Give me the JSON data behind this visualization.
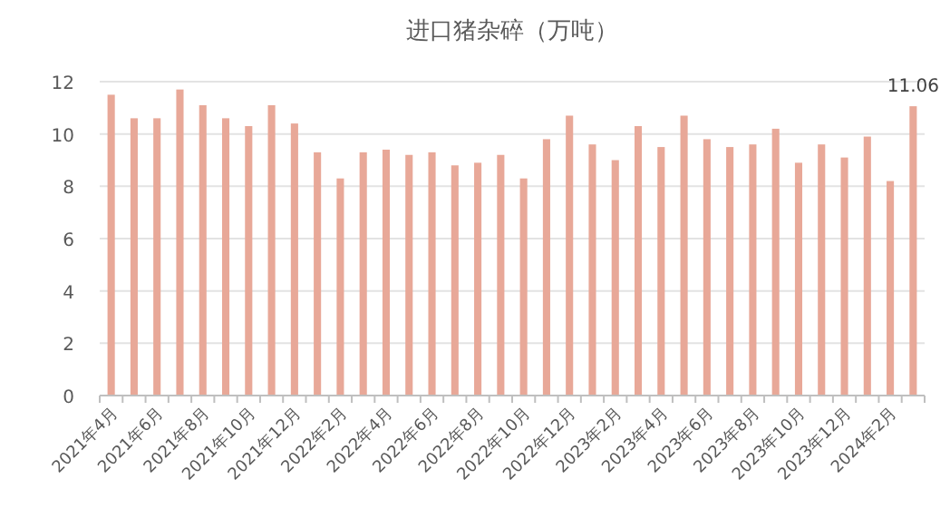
{
  "chart_data": {
    "type": "bar",
    "title": "进口猪杂碎（万吨）",
    "categories": [
      "2021年4月",
      null,
      "2021年6月",
      null,
      "2021年8月",
      null,
      "2021年10月",
      null,
      "2021年12月",
      null,
      "2022年2月",
      null,
      "2022年4月",
      null,
      "2022年6月",
      null,
      "2022年8月",
      null,
      "2022年10月",
      null,
      "2022年12月",
      null,
      "2023年2月",
      null,
      "2023年4月",
      null,
      "2023年6月",
      null,
      "2023年8月",
      null,
      "2023年10月",
      null,
      "2023年12月",
      null,
      "2024年2月",
      null
    ],
    "values": [
      11.5,
      10.6,
      10.6,
      11.7,
      11.1,
      10.6,
      10.3,
      11.1,
      10.4,
      9.3,
      8.3,
      9.3,
      9.4,
      9.2,
      9.3,
      8.8,
      8.9,
      9.2,
      8.3,
      9.8,
      10.7,
      9.6,
      9.0,
      10.3,
      9.5,
      10.7,
      9.8,
      9.5,
      9.6,
      10.2,
      8.9,
      9.6,
      9.1,
      9.9,
      8.2,
      11.06
    ],
    "value_labels": [
      null,
      null,
      null,
      null,
      null,
      null,
      null,
      null,
      null,
      null,
      null,
      null,
      null,
      null,
      null,
      null,
      null,
      null,
      null,
      null,
      null,
      null,
      null,
      null,
      null,
      null,
      null,
      null,
      null,
      null,
      null,
      null,
      null,
      null,
      null,
      "11.06"
    ],
    "color": "#e8a898",
    "ylim": [
      0,
      12
    ],
    "yticks": [
      0,
      2,
      4,
      6,
      8,
      10,
      12
    ],
    "grid": "y"
  }
}
